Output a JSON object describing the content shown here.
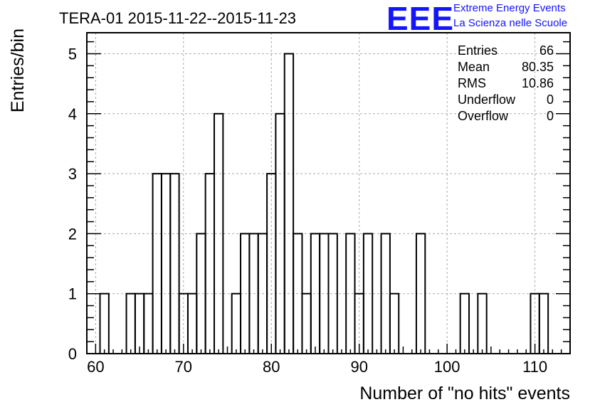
{
  "chart_data": {
    "type": "histogram",
    "title": "TERA-01 2015-11-22--2015-11-23",
    "xlabel": "Number of \"no hits\" events",
    "ylabel": "Entries/bin",
    "xlim": [
      59,
      114
    ],
    "ylim": [
      0,
      5.35
    ],
    "bin_width": 1,
    "grid": true,
    "x_ticks": [
      60,
      70,
      80,
      90,
      100,
      110
    ],
    "y_ticks": [
      0,
      1,
      2,
      3,
      4,
      5
    ],
    "bins": [
      {
        "x": 61,
        "count": 1
      },
      {
        "x": 64,
        "count": 1
      },
      {
        "x": 65,
        "count": 1
      },
      {
        "x": 66,
        "count": 1
      },
      {
        "x": 67,
        "count": 3
      },
      {
        "x": 68,
        "count": 3
      },
      {
        "x": 69,
        "count": 3
      },
      {
        "x": 70,
        "count": 1
      },
      {
        "x": 71,
        "count": 1
      },
      {
        "x": 72,
        "count": 2
      },
      {
        "x": 73,
        "count": 3
      },
      {
        "x": 74,
        "count": 4
      },
      {
        "x": 76,
        "count": 1
      },
      {
        "x": 77,
        "count": 2
      },
      {
        "x": 78,
        "count": 2
      },
      {
        "x": 79,
        "count": 2
      },
      {
        "x": 80,
        "count": 3
      },
      {
        "x": 81,
        "count": 4
      },
      {
        "x": 82,
        "count": 5
      },
      {
        "x": 83,
        "count": 2
      },
      {
        "x": 84,
        "count": 1
      },
      {
        "x": 85,
        "count": 2
      },
      {
        "x": 86,
        "count": 2
      },
      {
        "x": 87,
        "count": 2
      },
      {
        "x": 89,
        "count": 2
      },
      {
        "x": 90,
        "count": 1
      },
      {
        "x": 91,
        "count": 2
      },
      {
        "x": 93,
        "count": 2
      },
      {
        "x": 94,
        "count": 1
      },
      {
        "x": 97,
        "count": 2
      },
      {
        "x": 102,
        "count": 1
      },
      {
        "x": 104,
        "count": 1
      },
      {
        "x": 110,
        "count": 1
      },
      {
        "x": 111,
        "count": 1
      }
    ],
    "stats": [
      {
        "label": "Entries",
        "value": "66"
      },
      {
        "label": "Mean",
        "value": "80.35"
      },
      {
        "label": "RMS",
        "value": "10.86"
      },
      {
        "label": "Underflow",
        "value": "0"
      },
      {
        "label": "Overflow",
        "value": "0"
      }
    ]
  },
  "logo": {
    "letters": "EEE",
    "line1": "Extreme Energy Events",
    "line2": "La Scienza nelle Scuole",
    "color": "#1414ff"
  }
}
